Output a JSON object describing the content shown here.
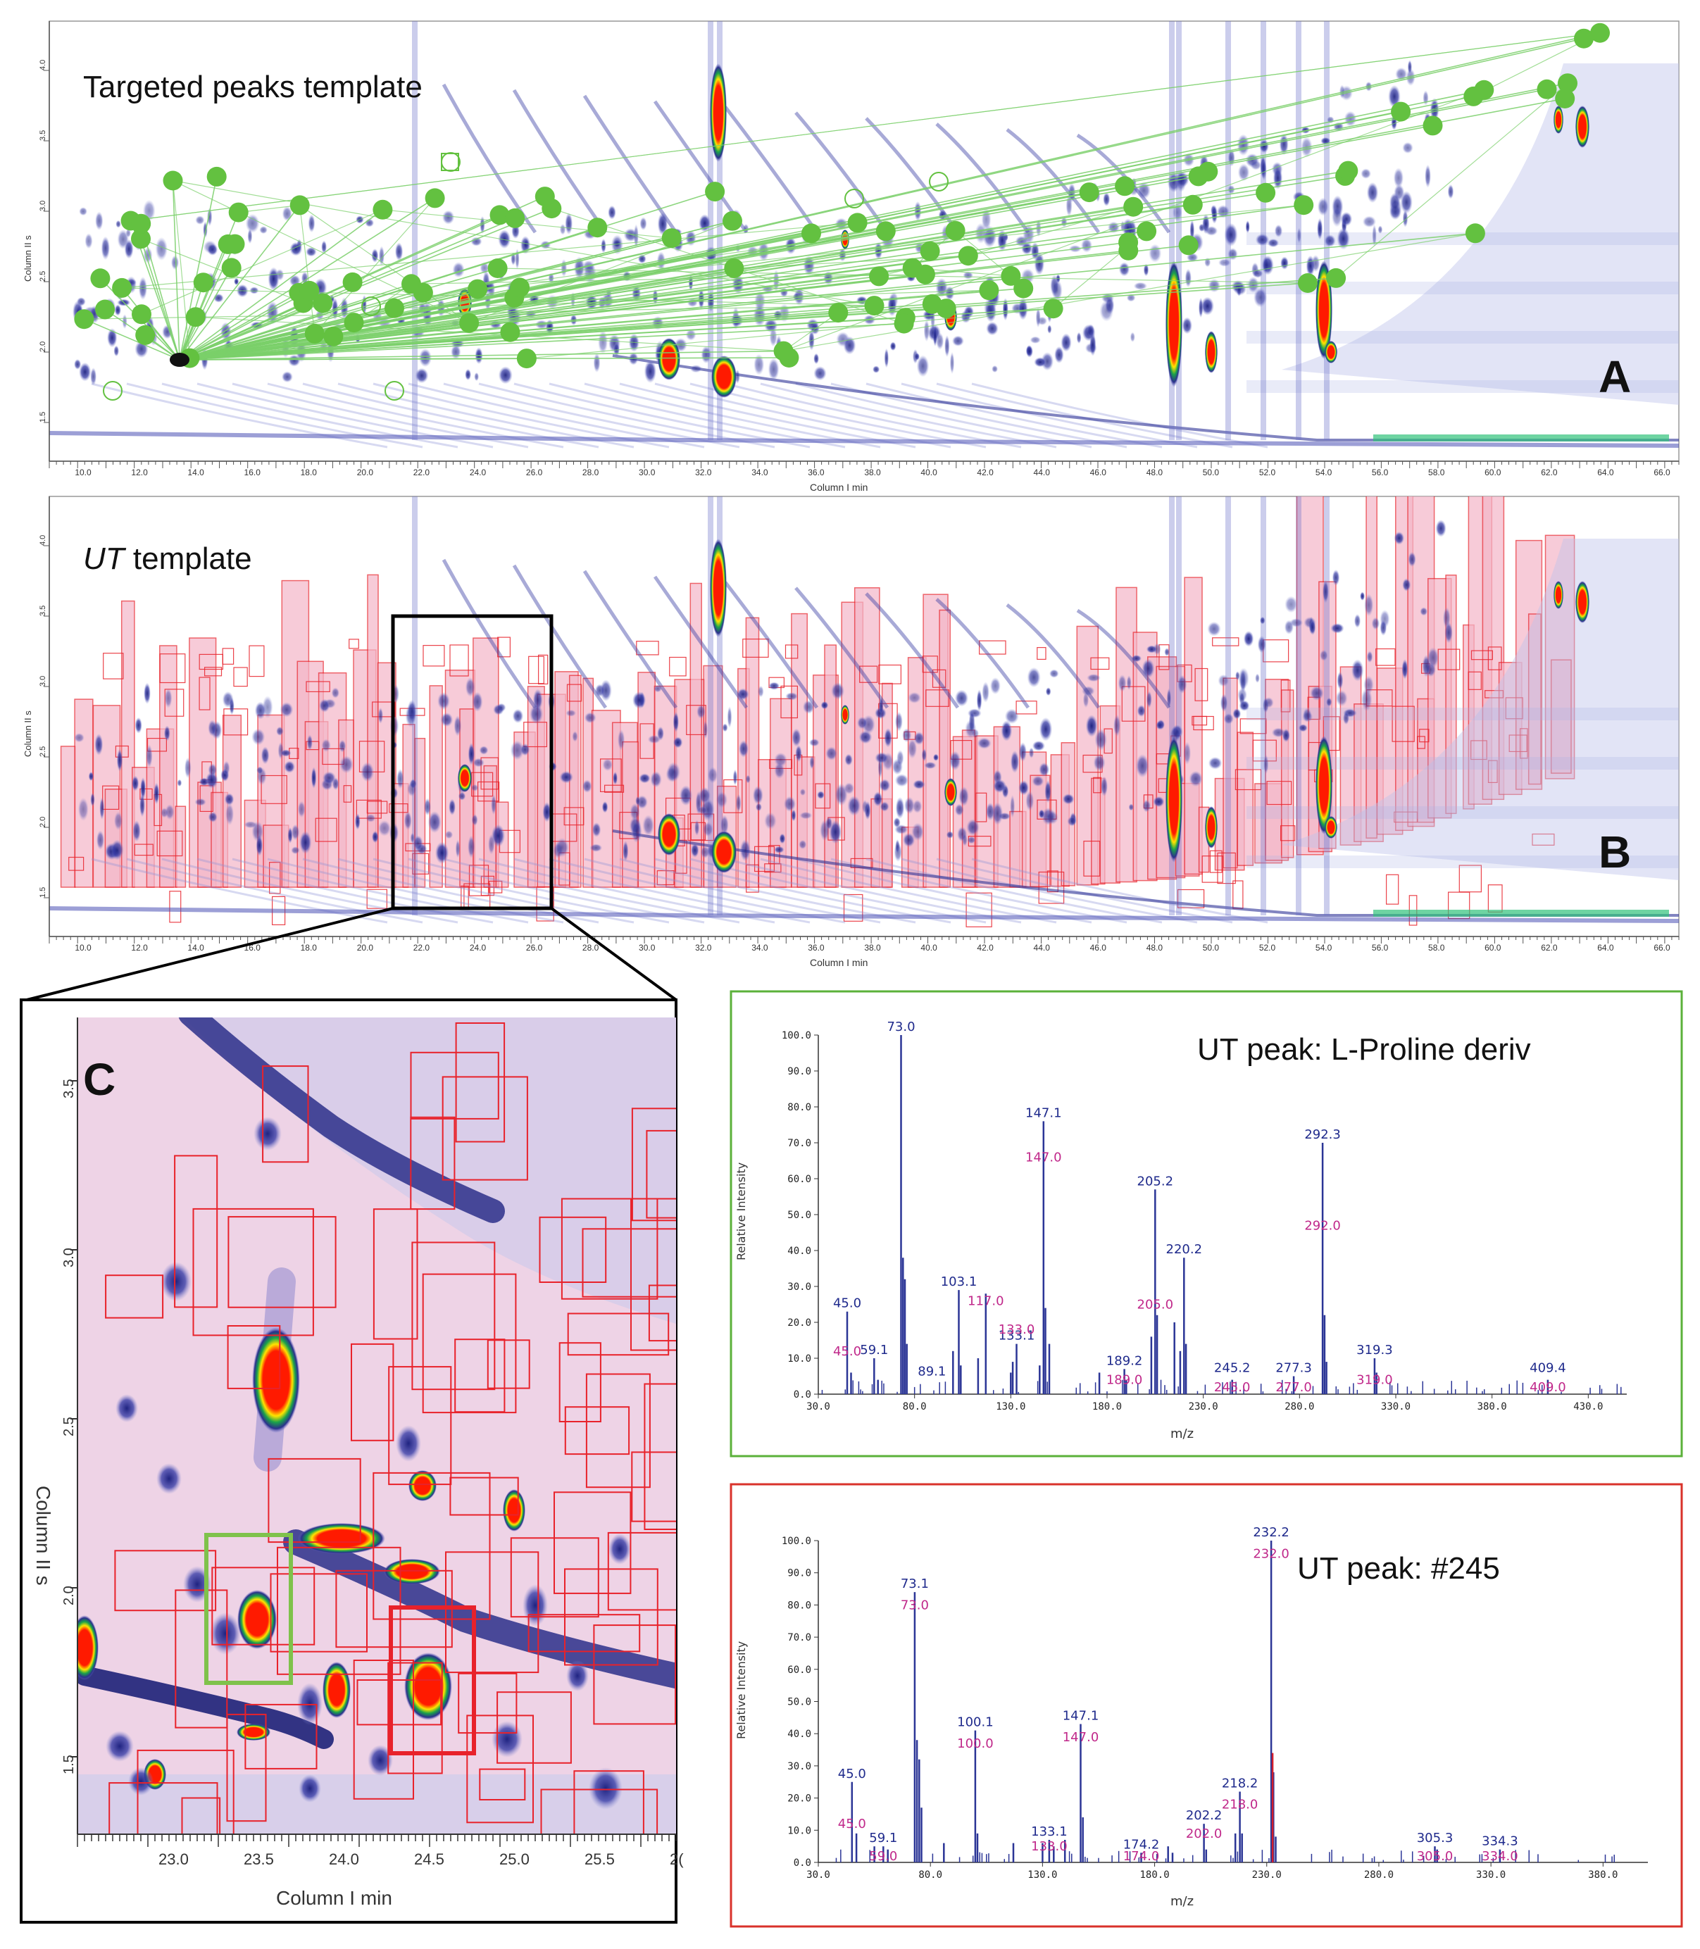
{
  "colors": {
    "blob_dark": "#2b2f8a",
    "blob_mid": "#5a5fc0",
    "hot_red": "#ff1a00",
    "hot_yellow": "#ffe400",
    "hot_green": "#1aa34a",
    "template_green": "#6cc04a",
    "ut_fill": "#f4b6c8",
    "ut_stroke": "#e8222b",
    "ms_blue": "#1f2a8c",
    "ms_magenta": "#c0288a",
    "frame_green": "#5bb13a",
    "frame_red": "#d9322a"
  },
  "panel_a": {
    "title": "Targeted peaks template",
    "letter": "A",
    "ylabel": "Column II s",
    "xlabel": "Column I min",
    "xticks": [
      "10.0",
      "12.0",
      "14.0",
      "16.0",
      "18.0",
      "20.0",
      "22.0",
      "24.0",
      "26.0",
      "28.0",
      "30.0",
      "32.0",
      "34.0",
      "36.0",
      "38.0",
      "40.0",
      "42.0",
      "44.0",
      "46.0",
      "48.0",
      "50.0",
      "52.0",
      "54.0",
      "56.0",
      "58.0",
      "60.0",
      "62.0",
      "64.0",
      "66.0"
    ],
    "yticks": [
      "1.5",
      "2.0",
      "2.5",
      "3.0",
      "3.5",
      "4.0"
    ]
  },
  "panel_b": {
    "title_italic": "UT",
    "title_rest": " template",
    "letter": "B",
    "ylabel": "Column II s",
    "xlabel": "Column I min",
    "xticks": [
      "10.0",
      "12.0",
      "14.0",
      "16.0",
      "18.0",
      "20.0",
      "22.0",
      "24.0",
      "26.0",
      "28.0",
      "30.0",
      "32.0",
      "34.0",
      "36.0",
      "38.0",
      "40.0",
      "42.0",
      "44.0",
      "46.0",
      "48.0",
      "50.0",
      "52.0",
      "54.0",
      "56.0",
      "58.0",
      "60.0",
      "62.0",
      "64.0",
      "66.0"
    ],
    "yticks": [
      "1.5",
      "2.0",
      "2.5",
      "3.0",
      "3.5",
      "4.0"
    ]
  },
  "panel_c": {
    "letter": "C",
    "ylabel": "Column II s",
    "xlabel": "Column I min",
    "xticks": [
      "23.0",
      "23.5",
      "24.0",
      "24.5",
      "25.0",
      "25.5",
      "2("
    ],
    "yticks": [
      "3.5",
      "3.0",
      "2.5",
      "2.0",
      "1.5"
    ]
  },
  "chart_data": [
    {
      "type": "bar",
      "title": "UT peak: L-Proline deriv",
      "title_bold_part": "T",
      "xlabel": "m/z",
      "ylabel": "Relative Intensity",
      "xlim": [
        30,
        450
      ],
      "ylim": [
        0,
        100
      ],
      "xticks": [
        "30.0",
        "80.0",
        "130.0",
        "180.0",
        "230.0",
        "280.0",
        "330.0",
        "380.0",
        "430.0"
      ],
      "yticks": [
        "0.0",
        "10.0",
        "20.0",
        "30.0",
        "40.0",
        "50.0",
        "60.0",
        "70.0",
        "80.0",
        "90.0",
        "100.0"
      ],
      "series": [
        {
          "name": "UT peak spectrum",
          "x": [
            45,
            47,
            59,
            61,
            73,
            74,
            75,
            76,
            100,
            103,
            104,
            113,
            117,
            130,
            131,
            133,
            145,
            147,
            148,
            150,
            176,
            189,
            190,
            203,
            205,
            206,
            215,
            218,
            220,
            221,
            245,
            277,
            292,
            293,
            294,
            319,
            320,
            409
          ],
          "values": [
            23,
            6,
            10,
            4,
            100,
            38,
            32,
            14,
            12,
            29,
            8,
            10,
            28,
            6,
            9,
            14,
            8,
            76,
            24,
            14,
            6,
            7,
            4,
            16,
            57,
            22,
            20,
            12,
            38,
            14,
            4,
            5,
            70,
            22,
            9,
            10,
            6,
            4
          ]
        },
        {
          "name": "library spectrum",
          "x": [
            45,
            117,
            133,
            147,
            189,
            205,
            245,
            277,
            292,
            319,
            409
          ],
          "values": [
            0,
            0,
            0,
            0,
            0,
            0,
            0,
            0,
            0,
            0,
            0
          ]
        }
      ],
      "labels_blue": [
        {
          "x": 45,
          "y": 23,
          "text": "45.0"
        },
        {
          "x": 59,
          "y": 10,
          "text": "59.1"
        },
        {
          "x": 73,
          "y": 100,
          "text": "73.0"
        },
        {
          "x": 89,
          "y": 4,
          "text": "89.1"
        },
        {
          "x": 103,
          "y": 29,
          "text": "103.1"
        },
        {
          "x": 133,
          "y": 14,
          "text": "133.1"
        },
        {
          "x": 147,
          "y": 76,
          "text": "147.1"
        },
        {
          "x": 189,
          "y": 7,
          "text": "189.2"
        },
        {
          "x": 205,
          "y": 57,
          "text": "205.2"
        },
        {
          "x": 220,
          "y": 38,
          "text": "220.2"
        },
        {
          "x": 245,
          "y": 5,
          "text": "245.2"
        },
        {
          "x": 277,
          "y": 5,
          "text": "277.3"
        },
        {
          "x": 292,
          "y": 70,
          "text": "292.3"
        },
        {
          "x": 319,
          "y": 10,
          "text": "319.3"
        },
        {
          "x": 409,
          "y": 5,
          "text": "409.4"
        }
      ],
      "labels_magenta": [
        {
          "x": 45,
          "y": 12,
          "text": "45.0"
        },
        {
          "x": 117,
          "y": 26,
          "text": "117.0"
        },
        {
          "x": 133,
          "y": 18,
          "text": "133.0"
        },
        {
          "x": 147,
          "y": 66,
          "text": "147.0"
        },
        {
          "x": 189,
          "y": 4,
          "text": "189.0"
        },
        {
          "x": 205,
          "y": 25,
          "text": "205.0"
        },
        {
          "x": 245,
          "y": 2,
          "text": "245.0"
        },
        {
          "x": 277,
          "y": 2,
          "text": "277.0"
        },
        {
          "x": 292,
          "y": 47,
          "text": "292.0"
        },
        {
          "x": 319,
          "y": 4,
          "text": "319.0"
        },
        {
          "x": 409,
          "y": 2,
          "text": "409.0"
        }
      ]
    },
    {
      "type": "bar",
      "title": "UT peak: #245",
      "xlabel": "m/z",
      "ylabel": "Relative Intensity",
      "xlim": [
        30,
        400
      ],
      "ylim": [
        0,
        100
      ],
      "xticks": [
        "30.0",
        "80.0",
        "130.0",
        "180.0",
        "230.0",
        "280.0",
        "330.0",
        "380.0"
      ],
      "yticks": [
        "0.0",
        "10.0",
        "20.0",
        "30.0",
        "40.0",
        "50.0",
        "60.0",
        "70.0",
        "80.0",
        "90.0",
        "100.0"
      ],
      "series": [
        {
          "name": "UT peak spectrum",
          "x": [
            45,
            47,
            55,
            59,
            61,
            73,
            74,
            75,
            76,
            86,
            100,
            101,
            117,
            130,
            133,
            135,
            140,
            147,
            148,
            174,
            186,
            188,
            202,
            203,
            216,
            218,
            219,
            232,
            233,
            234,
            305,
            306,
            334
          ],
          "values": [
            25,
            9,
            5,
            5,
            4,
            84,
            38,
            32,
            17,
            6,
            41,
            9,
            6,
            6,
            7,
            5,
            7,
            43,
            14,
            3,
            5,
            3,
            12,
            4,
            9,
            22,
            9,
            100,
            28,
            8,
            5,
            4,
            4
          ]
        },
        {
          "name": "library spectrum",
          "x": [
            232
          ],
          "values": [
            34
          ]
        }
      ],
      "labels_blue": [
        {
          "x": 45,
          "y": 25,
          "text": "45.0"
        },
        {
          "x": 59,
          "y": 5,
          "text": "59.1"
        },
        {
          "x": 73,
          "y": 84,
          "text": "73.1"
        },
        {
          "x": 100,
          "y": 41,
          "text": "100.1"
        },
        {
          "x": 133,
          "y": 7,
          "text": "133.1"
        },
        {
          "x": 147,
          "y": 43,
          "text": "147.1"
        },
        {
          "x": 174,
          "y": 3,
          "text": "174.2"
        },
        {
          "x": 202,
          "y": 12,
          "text": "202.2"
        },
        {
          "x": 218,
          "y": 22,
          "text": "218.2"
        },
        {
          "x": 232,
          "y": 100,
          "text": "232.2"
        },
        {
          "x": 305,
          "y": 5,
          "text": "305.3"
        },
        {
          "x": 334,
          "y": 4,
          "text": "334.3"
        }
      ],
      "labels_magenta": [
        {
          "x": 45,
          "y": 12,
          "text": "45.0"
        },
        {
          "x": 59,
          "y": 2,
          "text": "59.0"
        },
        {
          "x": 73,
          "y": 80,
          "text": "73.0"
        },
        {
          "x": 100,
          "y": 37,
          "text": "100.0"
        },
        {
          "x": 133,
          "y": 5,
          "text": "133.0"
        },
        {
          "x": 147,
          "y": 39,
          "text": "147.0"
        },
        {
          "x": 174,
          "y": 2,
          "text": "174.0"
        },
        {
          "x": 202,
          "y": 9,
          "text": "202.0"
        },
        {
          "x": 218,
          "y": 18,
          "text": "218.0"
        },
        {
          "x": 232,
          "y": 96,
          "text": "232.0"
        },
        {
          "x": 305,
          "y": 2,
          "text": "305.0"
        },
        {
          "x": 334,
          "y": 2,
          "text": "334.0"
        }
      ]
    }
  ]
}
